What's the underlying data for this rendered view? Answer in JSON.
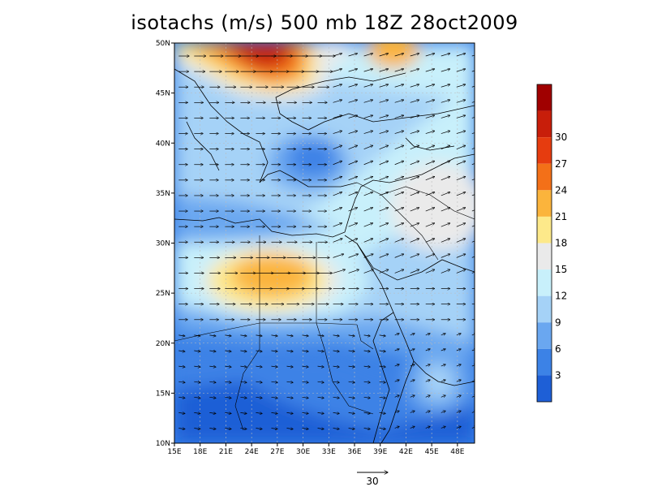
{
  "title": "isotachs (m/s) 500 mb 18Z 28oct2009",
  "map": {
    "lon_ticks": [
      "15E",
      "18E",
      "21E",
      "24E",
      "27E",
      "30E",
      "33E",
      "36E",
      "39E",
      "42E",
      "45E",
      "48E"
    ],
    "lat_ticks": [
      "10N",
      "15N",
      "20N",
      "25N",
      "30N",
      "35N",
      "40N",
      "45N",
      "50N"
    ],
    "lon_range": [
      15,
      50
    ],
    "lat_range": [
      10,
      50
    ]
  },
  "colorbar": {
    "labels": [
      "3",
      "6",
      "9",
      "12",
      "15",
      "18",
      "21",
      "24",
      "27",
      "30"
    ],
    "colors": [
      "#1e5fd6",
      "#3c82e6",
      "#6aa7f0",
      "#a5d2f7",
      "#c8f0fb",
      "#eaeaea",
      "#fde98a",
      "#fbb43c",
      "#f37018",
      "#e63c0f",
      "#c81e0a",
      "#a00000"
    ]
  },
  "vector_scale": {
    "label": "30"
  }
}
